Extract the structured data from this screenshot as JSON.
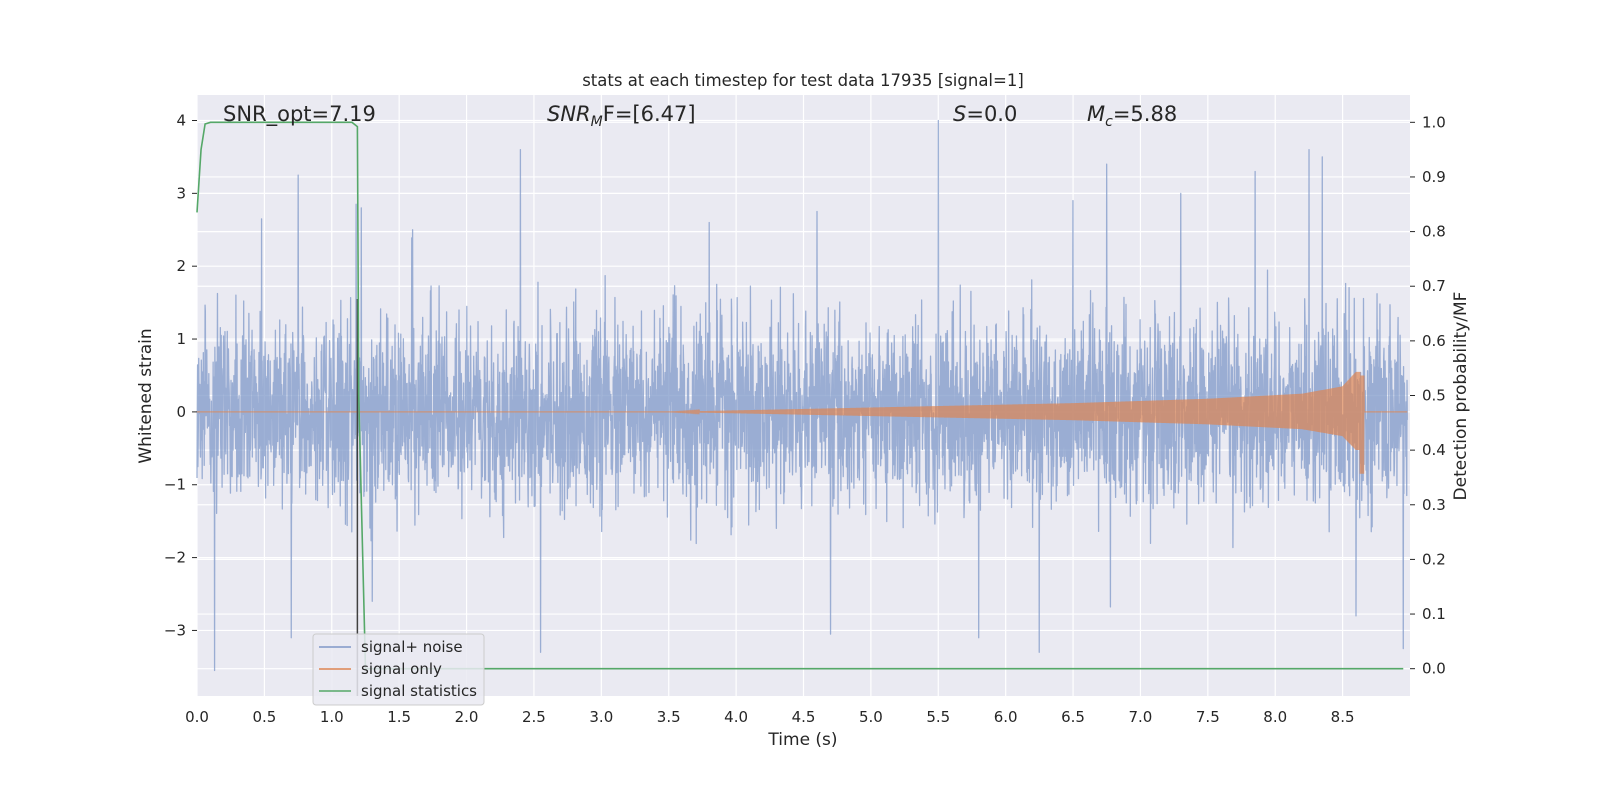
{
  "chart_data": {
    "type": "line",
    "title": "stats at each timestep for test data 17935 [signal=1]",
    "xlabel": "Time (s)",
    "ylabel_left": "Whitened strain",
    "ylabel_right": "Detection probability/MF",
    "xlim": [
      0.0,
      9.0
    ],
    "ylim_left": [
      -3.9,
      4.35
    ],
    "ylim_right": [
      -0.05,
      1.05
    ],
    "x_ticks": [
      "0.0",
      "0.5",
      "1.0",
      "1.5",
      "2.0",
      "2.5",
      "3.0",
      "3.5",
      "4.0",
      "4.5",
      "5.0",
      "5.5",
      "6.0",
      "6.5",
      "7.0",
      "7.5",
      "8.0",
      "8.5"
    ],
    "x_tick_values": [
      0.0,
      0.5,
      1.0,
      1.5,
      2.0,
      2.5,
      3.0,
      3.5,
      4.0,
      4.5,
      5.0,
      5.5,
      6.0,
      6.5,
      7.0,
      7.5,
      8.0,
      8.5
    ],
    "y_left_ticks": [
      "4",
      "3",
      "2",
      "1",
      "0",
      "−1",
      "−2",
      "−3"
    ],
    "y_left_tick_values": [
      4,
      3,
      2,
      1,
      0,
      -1,
      -2,
      -3
    ],
    "y_right_ticks": [
      "1.0",
      "0.9",
      "0.8",
      "0.7",
      "0.6",
      "0.5",
      "0.4",
      "0.3",
      "0.2",
      "0.1",
      "0.0"
    ],
    "y_right_tick_values": [
      1.0,
      0.9,
      0.8,
      0.7,
      0.6,
      0.5,
      0.4,
      0.3,
      0.2,
      0.1,
      0.0
    ],
    "grid": true,
    "legend_position": "lower-left",
    "series": [
      {
        "name": "signal+ noise",
        "axis": "left",
        "color": "#7f98c8",
        "description_values": {
          "kind": "noise",
          "envelope_typical": [
            -1.6,
            1.7
          ],
          "max": 4.0,
          "min": -3.55,
          "peaks": [
            [
              0.13,
              2.45
            ],
            [
              0.48,
              2.65
            ],
            [
              0.75,
              3.25
            ],
            [
              1.18,
              2.85
            ],
            [
              1.22,
              2.8
            ],
            [
              1.6,
              2.5
            ],
            [
              2.4,
              3.6
            ],
            [
              3.8,
              2.6
            ],
            [
              4.6,
              2.75
            ],
            [
              5.5,
              4.0
            ],
            [
              6.5,
              2.9
            ],
            [
              6.75,
              3.4
            ],
            [
              7.3,
              3.0
            ],
            [
              7.85,
              3.3
            ],
            [
              8.25,
              3.6
            ],
            [
              8.35,
              3.5
            ]
          ],
          "troughs": [
            [
              0.13,
              -3.55
            ],
            [
              0.7,
              -3.1
            ],
            [
              1.3,
              -2.6
            ],
            [
              2.55,
              -3.3
            ],
            [
              4.7,
              -3.05
            ],
            [
              5.8,
              -3.1
            ],
            [
              6.25,
              -3.3
            ],
            [
              8.6,
              -2.8
            ],
            [
              8.95,
              -3.25
            ]
          ]
        }
      },
      {
        "name": "signal only",
        "axis": "left",
        "color": "#dd8452",
        "description_values": {
          "kind": "chirp",
          "start": 3.5,
          "merger": 8.63,
          "end": 8.66,
          "amplitude_at": [
            [
              3.5,
              0.0
            ],
            [
              4.5,
              0.04
            ],
            [
              5.5,
              0.08
            ],
            [
              6.5,
              0.12
            ],
            [
              7.5,
              0.18
            ],
            [
              8.2,
              0.25
            ],
            [
              8.5,
              0.35
            ],
            [
              8.6,
              0.55
            ]
          ],
          "min_at_merger": -0.85
        }
      },
      {
        "name": "signal statistics",
        "axis": "right",
        "color": "#55a868",
        "x": [
          0.0,
          0.03,
          0.06,
          0.1,
          0.5,
          1.0,
          1.15,
          1.19,
          1.2,
          1.25,
          8.95
        ],
        "y": [
          0.835,
          0.95,
          0.997,
          1.0,
          1.0,
          1.0,
          1.0,
          0.992,
          0.5,
          0.0,
          0.0
        ]
      }
    ],
    "vertical_line": {
      "x": 1.19,
      "color": "#404040"
    },
    "annotations": [
      {
        "text": "SNR_opt=7.19",
        "x": 0.2,
        "y": 4.08
      },
      {
        "text_main": "SNR",
        "text_sub": "M",
        "text_rest": "F=[6.47]",
        "x": 2.6,
        "y": 4.08
      },
      {
        "text_main": "S",
        "text_rest": "=0.0",
        "x": 5.6,
        "y": 4.08
      },
      {
        "text_main": "M",
        "text_sub": "c",
        "text_rest": "=5.88",
        "x": 6.6,
        "y": 4.08
      }
    ]
  },
  "legend": {
    "items": [
      {
        "label": "signal+ noise",
        "color": "#7f98c8"
      },
      {
        "label": "signal only",
        "color": "#dd8452"
      },
      {
        "label": "signal statistics",
        "color": "#55a868"
      }
    ]
  }
}
